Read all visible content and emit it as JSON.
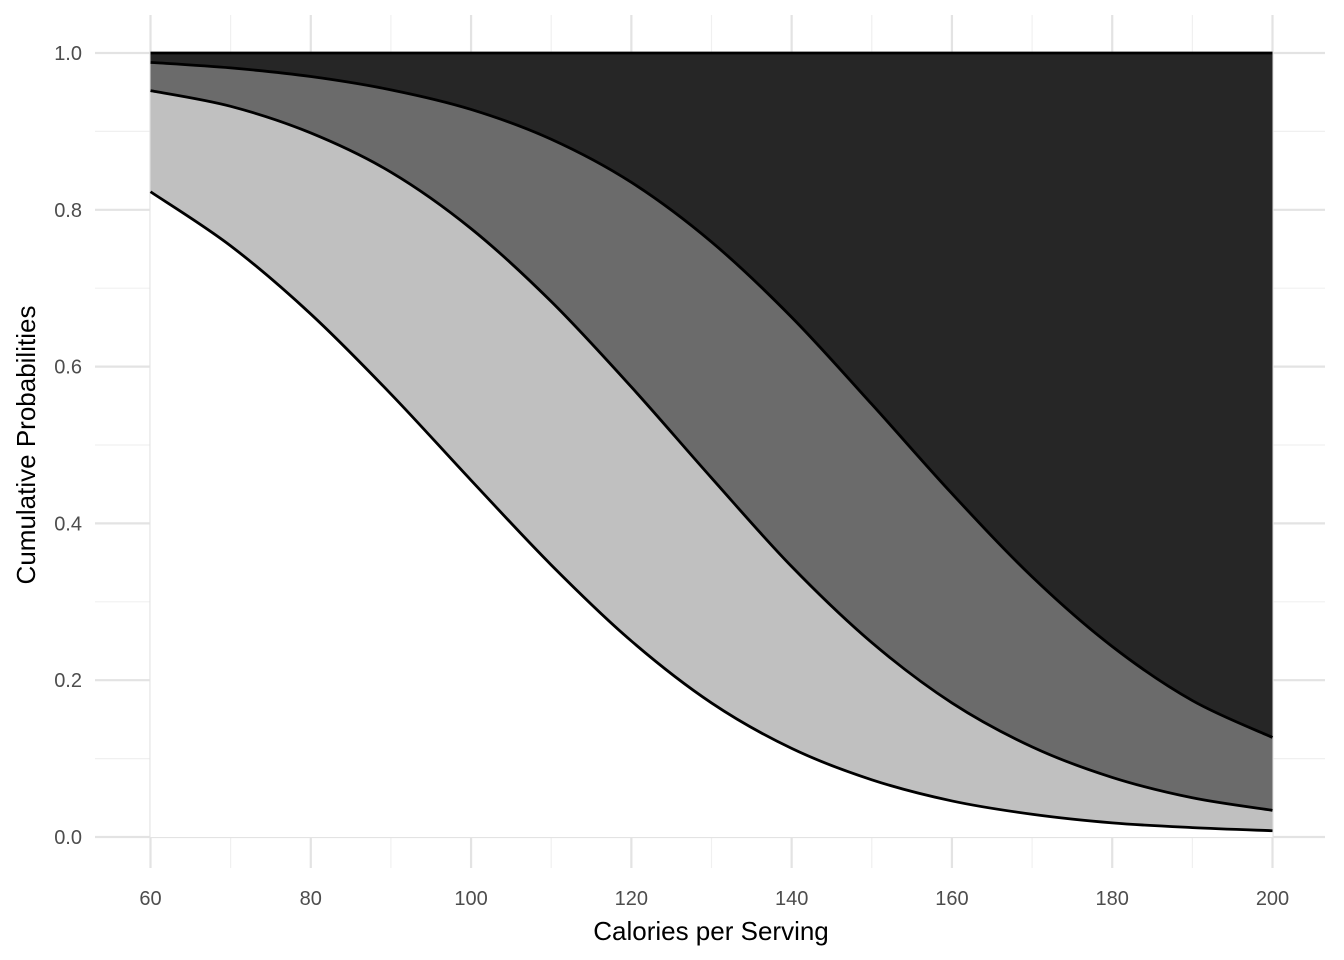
{
  "chart_data": {
    "type": "area",
    "title": "",
    "xlabel": "Calories per Serving",
    "ylabel": "Cumulative Probabilities",
    "xlim": [
      60,
      200
    ],
    "ylim": [
      0,
      1
    ],
    "x_ticks": [
      60,
      80,
      100,
      120,
      140,
      160,
      180,
      200
    ],
    "y_ticks": [
      "0.0",
      "0.2",
      "0.4",
      "0.6",
      "0.8",
      "1.0"
    ],
    "grid": true,
    "legend": "none",
    "x": [
      60,
      70,
      80,
      90,
      100,
      110,
      120,
      130,
      140,
      150,
      160,
      170,
      180,
      190,
      200
    ],
    "series": [
      {
        "fill": "#ffffff",
        "values": [
          0.823,
          0.754,
          0.667,
          0.565,
          0.455,
          0.347,
          0.25,
          0.171,
          0.113,
          0.073,
          0.046,
          0.029,
          0.018,
          0.012,
          0.008
        ]
      },
      {
        "fill": "#c0c0c0",
        "values": [
          0.952,
          0.932,
          0.898,
          0.848,
          0.776,
          0.683,
          0.574,
          0.458,
          0.345,
          0.248,
          0.171,
          0.115,
          0.076,
          0.05,
          0.034
        ]
      },
      {
        "fill": "#6b6b6b",
        "values": [
          0.988,
          0.981,
          0.97,
          0.953,
          0.928,
          0.89,
          0.835,
          0.759,
          0.663,
          0.552,
          0.438,
          0.332,
          0.243,
          0.174,
          0.127
        ]
      },
      {
        "fill": "#262626",
        "values": [
          1,
          1,
          1,
          1,
          1,
          1,
          1,
          1,
          1,
          1,
          1,
          1,
          1,
          1,
          1
        ]
      }
    ]
  }
}
